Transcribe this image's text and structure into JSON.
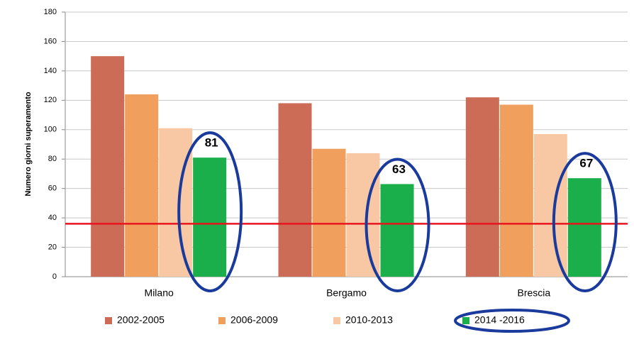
{
  "chart_data": {
    "type": "bar",
    "y_label": "Numero giorni superamento",
    "categories": [
      "Milano",
      "Bergamo",
      "Brescia"
    ],
    "series": [
      {
        "name": "2002-2005",
        "color": "#cd6c56",
        "values": [
          150,
          118,
          122
        ]
      },
      {
        "name": "2006-2009",
        "color": "#f0a05c",
        "values": [
          124,
          87,
          117
        ]
      },
      {
        "name": "2010-2013",
        "color": "#f8c8a4",
        "values": [
          101,
          84,
          97
        ]
      },
      {
        "name": "2014 -2016",
        "color": "#1aaf4b",
        "values": [
          81,
          63,
          67
        ],
        "highlighted": true
      }
    ],
    "ylim": [
      0,
      180
    ],
    "yticks": [
      0,
      20,
      40,
      60,
      80,
      100,
      120,
      140,
      160,
      180
    ],
    "grid": true,
    "reference_line": {
      "value": 36,
      "color": "#e8141e"
    },
    "highlight_color": "#1a3a9c",
    "legend": "bottom"
  }
}
